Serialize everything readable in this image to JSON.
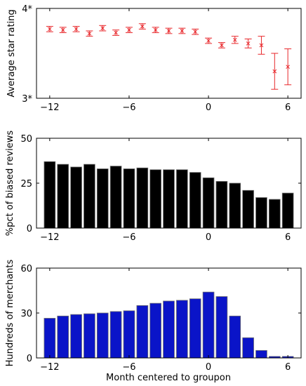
{
  "chart_data": [
    {
      "type": "scatter",
      "ylabel": "Average star rating",
      "xlabel": "",
      "xlim": [
        -13,
        7
      ],
      "ylim": [
        3,
        4
      ],
      "yticks": [
        3,
        4
      ],
      "ytick_labels": [
        "3*",
        "4*"
      ],
      "xticks": [
        -12,
        -6,
        0,
        6
      ],
      "xtick_labels": [
        "−12",
        "−6",
        "0",
        "6"
      ],
      "marker": "x",
      "color": "#e8262a",
      "x": [
        -12,
        -11,
        -10,
        -9,
        -8,
        -7,
        -6,
        -5,
        -4,
        -3,
        -2,
        -1,
        0,
        1,
        2,
        3,
        4,
        5,
        6
      ],
      "values": [
        3.77,
        3.76,
        3.77,
        3.72,
        3.78,
        3.73,
        3.76,
        3.8,
        3.76,
        3.75,
        3.75,
        3.74,
        3.64,
        3.59,
        3.65,
        3.61,
        3.59,
        3.3,
        3.35
      ],
      "error": [
        0.03,
        0.03,
        0.03,
        0.03,
        0.03,
        0.03,
        0.03,
        0.03,
        0.03,
        0.03,
        0.03,
        0.03,
        0.03,
        0.03,
        0.04,
        0.05,
        0.1,
        0.2,
        0.2
      ]
    },
    {
      "type": "bar",
      "ylabel": "%pct of biased reviews",
      "xlabel": "",
      "xlim": [
        -13,
        7
      ],
      "ylim": [
        0,
        50
      ],
      "yticks": [
        0,
        25,
        50
      ],
      "ytick_labels": [
        "0",
        "25",
        "50"
      ],
      "xticks": [
        -12,
        -6,
        0,
        6
      ],
      "xtick_labels": [
        "−12",
        "−6",
        "0",
        "6"
      ],
      "color": "#000000",
      "x": [
        -12,
        -11,
        -10,
        -9,
        -8,
        -7,
        -6,
        -5,
        -4,
        -3,
        -2,
        -1,
        0,
        1,
        2,
        3,
        4,
        5,
        6
      ],
      "values": [
        37,
        35.5,
        34,
        35.5,
        33,
        34.5,
        33,
        33.5,
        32.5,
        32.5,
        32.5,
        31,
        28,
        26,
        25,
        21,
        17,
        16,
        19.5
      ]
    },
    {
      "type": "bar",
      "ylabel": "Hundreds of merchants",
      "xlabel": "Month centered to groupon",
      "xlim": [
        -13,
        7
      ],
      "ylim": [
        0,
        60
      ],
      "yticks": [
        0,
        30,
        60
      ],
      "ytick_labels": [
        "0",
        "30",
        "60"
      ],
      "xticks": [
        -12,
        -6,
        0,
        6
      ],
      "xtick_labels": [
        "−12",
        "−6",
        "0",
        "6"
      ],
      "color": "#0a14c8",
      "x": [
        -12,
        -11,
        -10,
        -9,
        -8,
        -7,
        -6,
        -5,
        -4,
        -3,
        -2,
        -1,
        0,
        1,
        2,
        3,
        4,
        5,
        6
      ],
      "values": [
        26.5,
        28,
        29,
        29.5,
        30,
        31,
        31.5,
        35,
        36.5,
        38,
        38.5,
        39.5,
        44,
        41,
        28,
        13.5,
        5,
        1,
        1
      ]
    }
  ]
}
